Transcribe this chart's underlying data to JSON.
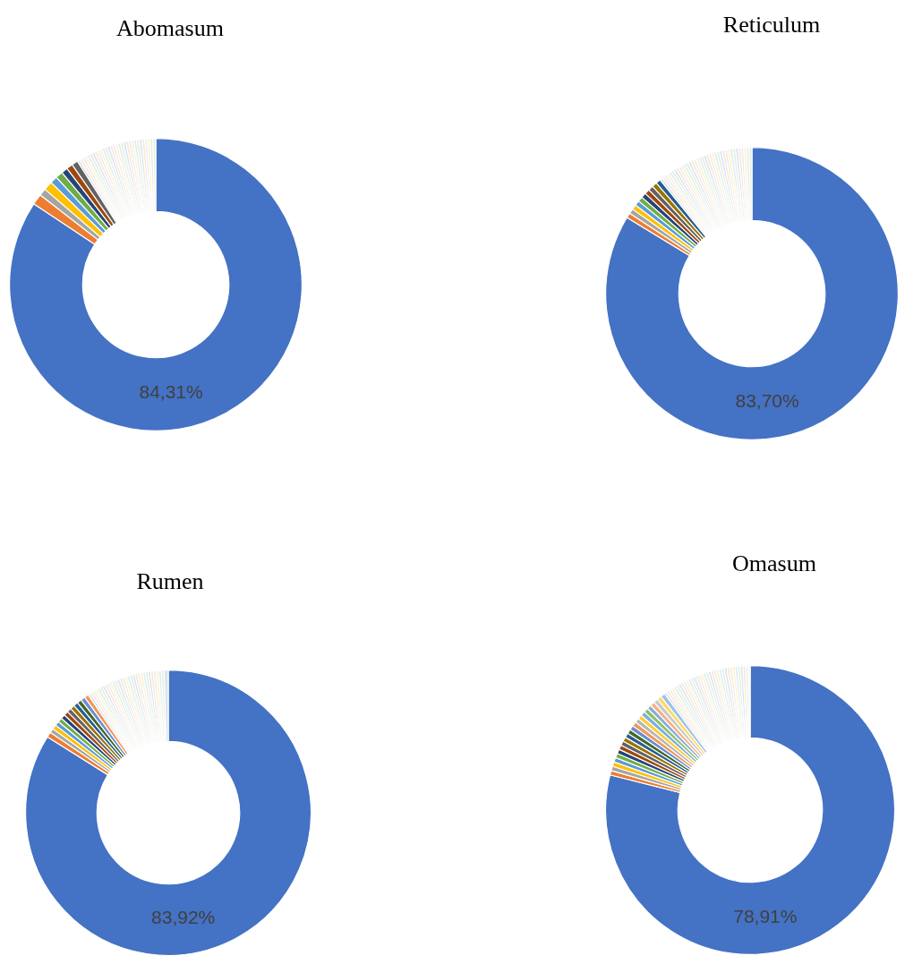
{
  "chart_data": [
    {
      "type": "donut",
      "title": "Abomasum",
      "categories": [
        null,
        null,
        null,
        null,
        null,
        null,
        null,
        null,
        null,
        null,
        null,
        null,
        null,
        null,
        null,
        null,
        null,
        null,
        null,
        null,
        null,
        null,
        null,
        null,
        null,
        null,
        null,
        null,
        null,
        null,
        null,
        null,
        null,
        null,
        null,
        null,
        null,
        null,
        null
      ],
      "values": [
        84.31,
        1.2,
        0.8,
        1.0,
        0.8,
        0.8,
        0.7,
        0.7,
        0.69,
        0.3,
        0.3,
        0.3,
        0.3,
        0.3,
        0.3,
        0.3,
        0.3,
        0.3,
        0.3,
        0.3,
        0.3,
        0.3,
        0.3,
        0.3,
        0.3,
        0.3,
        0.3,
        0.3,
        0.3,
        0.3,
        0.3,
        0.3,
        0.3,
        0.3,
        0.3,
        0.3,
        0.3,
        0.3,
        0.3
      ],
      "colors": [
        "#4472c4",
        "#ed7d31",
        "#a5a5a5",
        "#ffc000",
        "#5b9bd5",
        "#70ad47",
        "#264478",
        "#9e480e",
        "#636363",
        "#dae3f3",
        "#fbe5d6",
        "#ededed",
        "#fff2cc",
        "#deebf7",
        "#e2f0d9",
        "#dae3f3",
        "#fbe5d6",
        "#ededed",
        "#fff2cc",
        "#deebf7",
        "#e2f0d9",
        "#dae3f3",
        "#fbe5d6",
        "#ededed",
        "#fff2cc",
        "#deebf7",
        "#e2f0d9",
        "#dae3f3",
        "#fbe5d6",
        "#ededed",
        "#fff2cc",
        "#deebf7",
        "#e2f0d9",
        "#dae3f3",
        "#fbe5d6",
        "#ededed",
        "#fff2cc",
        "#deebf7",
        "#e2f0d9"
      ],
      "value_labels": [
        "84,31%",
        null,
        null,
        null,
        null,
        null,
        null,
        null,
        null,
        null,
        null,
        null,
        null,
        null,
        null,
        null,
        null,
        null,
        null,
        null,
        null,
        null,
        null,
        null,
        null,
        null,
        null,
        null,
        null,
        null,
        null,
        null,
        null,
        null,
        null,
        null,
        null,
        null,
        null
      ]
    },
    {
      "type": "donut",
      "title": "Reticulum",
      "categories": [
        null,
        null,
        null,
        null,
        null,
        null,
        null,
        null,
        null,
        null,
        null,
        null,
        null,
        null,
        null,
        null,
        null,
        null,
        null,
        null,
        null,
        null,
        null,
        null,
        null,
        null,
        null,
        null,
        null,
        null,
        null,
        null,
        null,
        null,
        null,
        null,
        null,
        null,
        null,
        null,
        null,
        null,
        null,
        null,
        null,
        null,
        null
      ],
      "values": [
        83.7,
        0.55,
        0.55,
        0.55,
        0.55,
        0.55,
        0.55,
        0.55,
        0.55,
        0.55,
        0.55,
        0.3,
        0.3,
        0.3,
        0.3,
        0.3,
        0.3,
        0.3,
        0.3,
        0.3,
        0.3,
        0.3,
        0.3,
        0.3,
        0.3,
        0.3,
        0.3,
        0.3,
        0.3,
        0.3,
        0.3,
        0.3,
        0.3,
        0.3,
        0.3,
        0.3,
        0.3,
        0.3,
        0.3,
        0.3,
        0.3,
        0.3,
        0.3,
        0.3,
        0.3,
        0.3,
        0.3
      ],
      "colors": [
        "#4472c4",
        "#ed7d31",
        "#a5a5a5",
        "#ffc000",
        "#5b9bd5",
        "#70ad47",
        "#264478",
        "#9e480e",
        "#636363",
        "#997300",
        "#255e91",
        "#dae3f3",
        "#fbe5d6",
        "#ededed",
        "#fff2cc",
        "#deebf7",
        "#e2f0d9",
        "#dae3f3",
        "#fbe5d6",
        "#ededed",
        "#fff2cc",
        "#deebf7",
        "#e2f0d9",
        "#dae3f3",
        "#fbe5d6",
        "#ededed",
        "#fff2cc",
        "#deebf7",
        "#e2f0d9",
        "#dae3f3",
        "#fbe5d6",
        "#ededed",
        "#fff2cc",
        "#deebf7",
        "#e2f0d9",
        "#dae3f3",
        "#fbe5d6",
        "#ededed",
        "#fff2cc",
        "#deebf7",
        "#e2f0d9",
        "#dae3f3",
        "#fbe5d6",
        "#ededed",
        "#fff2cc",
        "#deebf7",
        "#e2f0d9"
      ],
      "value_labels": [
        "83,70%",
        null,
        null,
        null,
        null,
        null,
        null,
        null,
        null,
        null,
        null,
        null,
        null,
        null,
        null,
        null,
        null,
        null,
        null,
        null,
        null,
        null,
        null,
        null,
        null,
        null,
        null,
        null,
        null,
        null,
        null,
        null,
        null,
        null,
        null,
        null,
        null,
        null,
        null,
        null,
        null,
        null,
        null,
        null,
        null,
        null,
        null
      ]
    },
    {
      "type": "donut",
      "title": "Rumen",
      "categories": [
        null,
        null,
        null,
        null,
        null,
        null,
        null,
        null,
        null,
        null,
        null,
        null,
        null,
        null,
        null,
        null,
        null,
        null,
        null,
        null,
        null,
        null,
        null,
        null,
        null,
        null,
        null,
        null,
        null,
        null,
        null,
        null,
        null,
        null,
        null,
        null,
        null,
        null,
        null,
        null,
        null,
        null,
        null,
        null,
        null
      ],
      "values": [
        83.92,
        0.6,
        0.5,
        0.5,
        0.5,
        0.5,
        0.5,
        0.5,
        0.5,
        0.5,
        0.5,
        0.5,
        0.5,
        0.5,
        0.3,
        0.3,
        0.3,
        0.3,
        0.3,
        0.3,
        0.3,
        0.3,
        0.3,
        0.3,
        0.3,
        0.3,
        0.3,
        0.3,
        0.3,
        0.3,
        0.3,
        0.3,
        0.3,
        0.3,
        0.3,
        0.3,
        0.3,
        0.3,
        0.3,
        0.3,
        0.3,
        0.3,
        0.3,
        0.3,
        0.48
      ],
      "colors": [
        "#4472c4",
        "#ed7d31",
        "#a5a5a5",
        "#ffc000",
        "#5b9bd5",
        "#70ad47",
        "#264478",
        "#9e480e",
        "#636363",
        "#997300",
        "#255e91",
        "#43682b",
        "#698ed0",
        "#f1975a",
        "#dae3f3",
        "#fbe5d6",
        "#ededed",
        "#fff2cc",
        "#deebf7",
        "#e2f0d9",
        "#dae3f3",
        "#fbe5d6",
        "#ededed",
        "#fff2cc",
        "#deebf7",
        "#e2f0d9",
        "#dae3f3",
        "#fbe5d6",
        "#ededed",
        "#fff2cc",
        "#deebf7",
        "#e2f0d9",
        "#dae3f3",
        "#fbe5d6",
        "#ededed",
        "#fff2cc",
        "#deebf7",
        "#e2f0d9",
        "#dae3f3",
        "#fbe5d6",
        "#ededed",
        "#fff2cc",
        "#deebf7",
        "#e2f0d9",
        "#dae3f3"
      ],
      "value_labels": [
        "83,92%",
        null,
        null,
        null,
        null,
        null,
        null,
        null,
        null,
        null,
        null,
        null,
        null,
        null,
        null,
        null,
        null,
        null,
        null,
        null,
        null,
        null,
        null,
        null,
        null,
        null,
        null,
        null,
        null,
        null,
        null,
        null,
        null,
        null,
        null,
        null,
        null,
        null,
        null,
        null,
        null,
        null,
        null,
        null,
        null
      ]
    },
    {
      "type": "donut",
      "title": "Omasum",
      "categories": [
        null,
        null,
        null,
        null,
        null,
        null,
        null,
        null,
        null,
        null,
        null,
        null,
        null,
        null,
        null,
        null,
        null,
        null,
        null,
        null,
        null,
        null,
        null,
        null,
        null,
        null,
        null,
        null,
        null,
        null,
        null,
        null,
        null,
        null,
        null,
        null,
        null,
        null,
        null,
        null,
        null,
        null,
        null,
        null,
        null,
        null,
        null,
        null,
        null,
        null,
        null,
        null,
        null,
        null,
        null,
        null,
        null
      ],
      "values": [
        78.91,
        0.5,
        0.5,
        0.5,
        0.5,
        0.5,
        0.5,
        0.5,
        0.5,
        0.5,
        0.5,
        0.5,
        0.5,
        0.5,
        0.5,
        0.5,
        0.5,
        0.5,
        0.5,
        0.5,
        0.5,
        0.5,
        0.5,
        0.3,
        0.3,
        0.3,
        0.3,
        0.3,
        0.3,
        0.3,
        0.3,
        0.3,
        0.3,
        0.3,
        0.3,
        0.3,
        0.3,
        0.3,
        0.3,
        0.3,
        0.3,
        0.3,
        0.3,
        0.3,
        0.3,
        0.3,
        0.3,
        0.3,
        0.3,
        0.3,
        0.3,
        0.3,
        0.3,
        0.3,
        0.3,
        0.3,
        0.19
      ],
      "colors": [
        "#4472c4",
        "#ed7d31",
        "#a5a5a5",
        "#ffc000",
        "#5b9bd5",
        "#70ad47",
        "#264478",
        "#9e480e",
        "#636363",
        "#997300",
        "#255e91",
        "#43682b",
        "#698ed0",
        "#f1975a",
        "#b7b7b7",
        "#ffcd33",
        "#7cafdd",
        "#8cc168",
        "#8faadc",
        "#f4b183",
        "#c9c9c9",
        "#ffd966",
        "#9dc3e6",
        "#dae3f3",
        "#fbe5d6",
        "#ededed",
        "#fff2cc",
        "#deebf7",
        "#e2f0d9",
        "#dae3f3",
        "#fbe5d6",
        "#ededed",
        "#fff2cc",
        "#deebf7",
        "#e2f0d9",
        "#dae3f3",
        "#fbe5d6",
        "#ededed",
        "#fff2cc",
        "#deebf7",
        "#e2f0d9",
        "#dae3f3",
        "#fbe5d6",
        "#ededed",
        "#fff2cc",
        "#deebf7",
        "#e2f0d9",
        "#dae3f3",
        "#fbe5d6",
        "#ededed",
        "#fff2cc",
        "#deebf7",
        "#e2f0d9",
        "#dae3f3",
        "#fbe5d6",
        "#ededed",
        "#fff2cc"
      ],
      "value_labels": [
        "78,91%",
        null,
        null,
        null,
        null,
        null,
        null,
        null,
        null,
        null,
        null,
        null,
        null,
        null,
        null,
        null,
        null,
        null,
        null,
        null,
        null,
        null,
        null,
        null,
        null,
        null,
        null,
        null,
        null,
        null,
        null,
        null,
        null,
        null,
        null,
        null,
        null,
        null,
        null,
        null,
        null,
        null,
        null,
        null,
        null,
        null,
        null,
        null,
        null,
        null,
        null,
        null,
        null,
        null,
        null,
        null,
        null
      ]
    }
  ]
}
